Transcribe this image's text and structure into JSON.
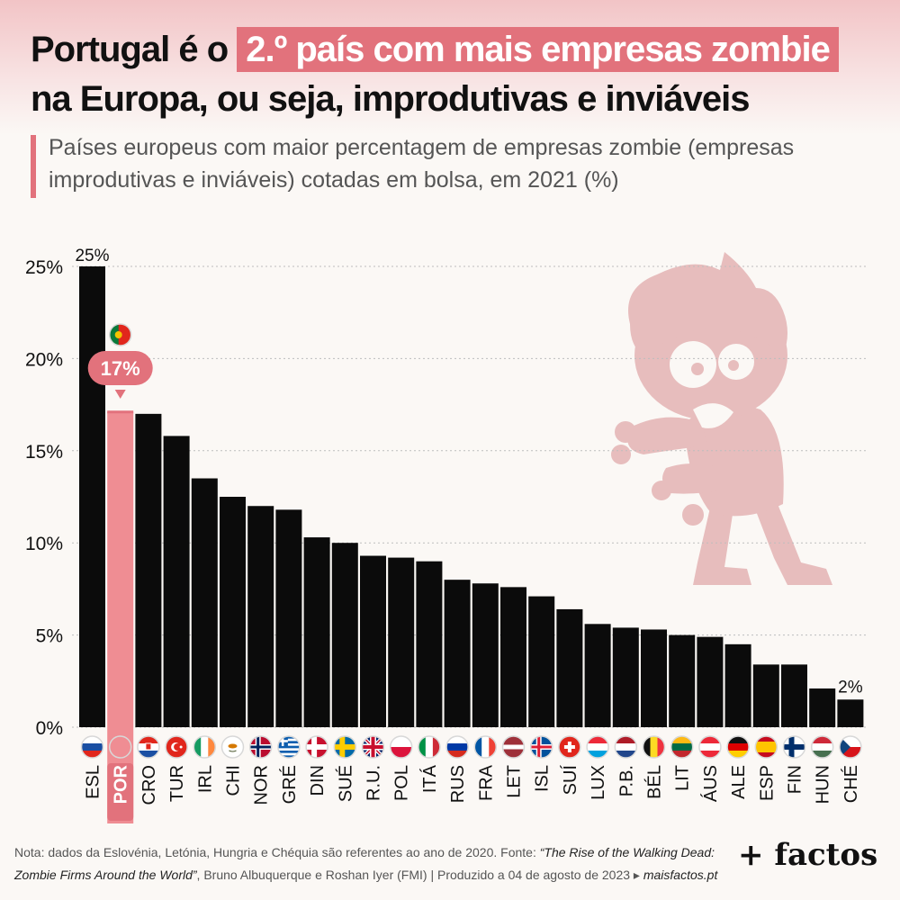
{
  "title": {
    "line1_prefix": "Portugal é o",
    "line1_highlight": "2.º país com mais empresas zombie",
    "line2": "na Europa, ou seja, improdutivas e inviáveis"
  },
  "subtitle": "Países europeus com maior percentagem de empresas zombie (empresas improdutivas e inviáveis) cotadas em bolsa, em 2021 (%)",
  "colors": {
    "bar": "#0b0b0b",
    "highlight": "#e2727c",
    "highlight_bar": "#ef8d93",
    "zombie": "#e7bdbd"
  },
  "chart_data": {
    "type": "bar",
    "categories": [
      "ESL",
      "POR",
      "CRO",
      "TUR",
      "IRL",
      "CHI",
      "NOR",
      "GRÉ",
      "DIN",
      "SUÉ",
      "R.U.",
      "POL",
      "ITÁ",
      "RUS",
      "FRA",
      "LET",
      "ISL",
      "SUÍ",
      "LUX",
      "P.B.",
      "BÉL",
      "LIT",
      "ÁUS",
      "ALE",
      "ESP",
      "FIN",
      "HUN",
      "CHÉ"
    ],
    "values": [
      25,
      17.1,
      17,
      15.8,
      13.5,
      12.5,
      12,
      11.8,
      10.3,
      10,
      9.3,
      9.2,
      9,
      8,
      7.8,
      7.6,
      7.1,
      6.4,
      5.6,
      5.4,
      5.3,
      5,
      4.9,
      4.5,
      3.4,
      3.4,
      2.1,
      1.5
    ],
    "highlight_index": 1,
    "highlight_label": "17%",
    "top_label": "25%",
    "last_label": "2%",
    "ylim": [
      0,
      25
    ],
    "y_ticks": [
      "0%",
      "5%",
      "10%",
      "15%",
      "20%",
      "25%"
    ],
    "y_tick_values": [
      0,
      5,
      10,
      15,
      20,
      25
    ],
    "grid": true,
    "flags": [
      "si",
      "pt",
      "hr",
      "tr",
      "ie",
      "cy",
      "no",
      "gr",
      "dk",
      "se",
      "gb",
      "pl",
      "it",
      "ru",
      "fr",
      "lv",
      "is",
      "ch",
      "lu",
      "nl",
      "be",
      "lt",
      "at",
      "de",
      "es",
      "fi",
      "hu",
      "cz"
    ]
  },
  "note": {
    "prefix": "Nota: dados da Eslovénia, Letónia, Hungria e Chéquia são referentes ao ano de 2020. Fonte: ",
    "source_title": "“The Rise of the Walking Dead: Zombie Firms Around the World”",
    "middle": ", Bruno Albuquerque e Roshan Iyer (FMI) | Produzido a 04 de agosto de 2023 ▸ ",
    "site": "maisfactos.pt"
  },
  "brand": "+ factos"
}
